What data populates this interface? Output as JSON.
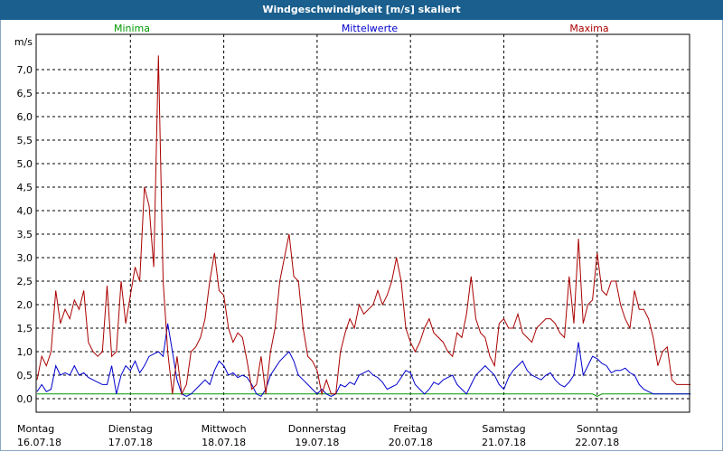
{
  "window": {
    "title": "Windgeschwindigkeit [m/s] skaliert"
  },
  "chart_data": {
    "type": "line",
    "title": "Windgeschwindigkeit [m/s] skaliert",
    "ylabel": "m/s",
    "ylim": [
      0,
      7.5
    ],
    "y_ticks": [
      "0,0",
      "0,5",
      "1,0",
      "1,5",
      "2,0",
      "2,5",
      "3,0",
      "3,5",
      "4,0",
      "4,5",
      "5,0",
      "5,5",
      "6,0",
      "6,5",
      "7,0"
    ],
    "x_range": [
      0,
      7
    ],
    "x_ticks": [
      {
        "day": "Montag",
        "date": "16.07.18"
      },
      {
        "day": "Dienstag",
        "date": "17.07.18"
      },
      {
        "day": "Mittwoch",
        "date": "18.07.18"
      },
      {
        "day": "Donnerstag",
        "date": "19.07.18"
      },
      {
        "day": "Freitag",
        "date": "20.07.18"
      },
      {
        "day": "Samstag",
        "date": "21.07.18"
      },
      {
        "day": "Sonntag",
        "date": "22.07.18"
      }
    ],
    "grid": true,
    "legend_position": "top",
    "series": [
      {
        "name": "Minima",
        "color": "#009900",
        "x": [
          0,
          5.95,
          6.0,
          6.05,
          7.0
        ],
        "y": [
          0.1,
          0.1,
          0.05,
          0.1,
          0.1
        ]
      },
      {
        "name": "Mittelwerte",
        "color": "#0000cc",
        "x": [
          0,
          0.05,
          0.1,
          0.15,
          0.2,
          0.25,
          0.3,
          0.35,
          0.4,
          0.45,
          0.5,
          0.55,
          0.6,
          0.65,
          0.7,
          0.75,
          0.8,
          0.85,
          0.9,
          0.95,
          1.0,
          1.05,
          1.1,
          1.15,
          1.2,
          1.25,
          1.3,
          1.35,
          1.4,
          1.45,
          1.5,
          1.55,
          1.6,
          1.65,
          1.7,
          1.75,
          1.8,
          1.85,
          1.9,
          1.95,
          2.0,
          2.05,
          2.1,
          2.15,
          2.2,
          2.25,
          2.3,
          2.35,
          2.4,
          2.45,
          2.5,
          2.55,
          2.6,
          2.65,
          2.7,
          2.75,
          2.8,
          2.85,
          2.9,
          2.95,
          3.0,
          3.05,
          3.1,
          3.15,
          3.2,
          3.25,
          3.3,
          3.35,
          3.4,
          3.45,
          3.5,
          3.55,
          3.6,
          3.65,
          3.7,
          3.75,
          3.8,
          3.85,
          3.9,
          3.95,
          4.0,
          4.05,
          4.1,
          4.15,
          4.2,
          4.25,
          4.3,
          4.35,
          4.4,
          4.45,
          4.5,
          4.55,
          4.6,
          4.65,
          4.7,
          4.75,
          4.8,
          4.85,
          4.9,
          4.95,
          5.0,
          5.05,
          5.1,
          5.15,
          5.2,
          5.25,
          5.3,
          5.35,
          5.4,
          5.45,
          5.5,
          5.55,
          5.6,
          5.65,
          5.7,
          5.75,
          5.8,
          5.85,
          5.9,
          5.95,
          6.0,
          6.05,
          6.1,
          6.15,
          6.2,
          6.25,
          6.3,
          6.35,
          6.4,
          6.45,
          6.5,
          6.55,
          6.6,
          6.65,
          6.7,
          6.75,
          6.8,
          6.85,
          6.9,
          6.95,
          7.0
        ],
        "y": [
          0.15,
          0.3,
          0.15,
          0.2,
          0.7,
          0.5,
          0.55,
          0.5,
          0.7,
          0.5,
          0.55,
          0.45,
          0.4,
          0.35,
          0.3,
          0.3,
          0.7,
          0.1,
          0.5,
          0.7,
          0.6,
          0.8,
          0.55,
          0.7,
          0.9,
          0.95,
          1.0,
          0.9,
          1.6,
          1.0,
          0.4,
          0.1,
          0.05,
          0.1,
          0.2,
          0.3,
          0.4,
          0.3,
          0.6,
          0.8,
          0.7,
          0.5,
          0.55,
          0.45,
          0.5,
          0.45,
          0.3,
          0.1,
          0.05,
          0.2,
          0.5,
          0.65,
          0.8,
          0.9,
          1.0,
          0.8,
          0.5,
          0.4,
          0.3,
          0.2,
          0.1,
          0.2,
          0.1,
          0.05,
          0.1,
          0.3,
          0.25,
          0.35,
          0.3,
          0.5,
          0.55,
          0.6,
          0.5,
          0.45,
          0.35,
          0.2,
          0.25,
          0.3,
          0.45,
          0.6,
          0.55,
          0.3,
          0.2,
          0.1,
          0.2,
          0.35,
          0.3,
          0.4,
          0.45,
          0.5,
          0.3,
          0.2,
          0.1,
          0.3,
          0.5,
          0.6,
          0.7,
          0.6,
          0.5,
          0.3,
          0.2,
          0.45,
          0.6,
          0.7,
          0.8,
          0.6,
          0.5,
          0.45,
          0.4,
          0.5,
          0.55,
          0.4,
          0.3,
          0.25,
          0.35,
          0.5,
          1.2,
          0.5,
          0.7,
          0.9,
          0.85,
          0.75,
          0.7,
          0.55,
          0.6,
          0.6,
          0.65,
          0.55,
          0.5,
          0.3,
          0.2,
          0.15,
          0.1,
          0.1,
          0.1,
          0.1,
          0.1,
          0.1,
          0.1,
          0.1,
          0.1
        ],
        "y_note": "blue series"
      },
      {
        "name": "Maxima",
        "color": "#aa0000",
        "x": [
          0,
          0.05,
          0.1,
          0.15,
          0.2,
          0.25,
          0.3,
          0.35,
          0.4,
          0.45,
          0.5,
          0.55,
          0.6,
          0.65,
          0.7,
          0.75,
          0.8,
          0.85,
          0.9,
          0.95,
          1.0,
          1.05,
          1.1,
          1.15,
          1.2,
          1.25,
          1.3,
          1.35,
          1.4,
          1.45,
          1.5,
          1.55,
          1.6,
          1.65,
          1.7,
          1.75,
          1.8,
          1.85,
          1.9,
          1.95,
          2.0,
          2.05,
          2.1,
          2.15,
          2.2,
          2.25,
          2.3,
          2.35,
          2.4,
          2.45,
          2.5,
          2.55,
          2.6,
          2.65,
          2.7,
          2.75,
          2.8,
          2.85,
          2.9,
          2.95,
          3.0,
          3.05,
          3.1,
          3.15,
          3.2,
          3.25,
          3.3,
          3.35,
          3.4,
          3.45,
          3.5,
          3.55,
          3.6,
          3.65,
          3.7,
          3.75,
          3.8,
          3.85,
          3.9,
          3.95,
          4.0,
          4.05,
          4.1,
          4.15,
          4.2,
          4.25,
          4.3,
          4.35,
          4.4,
          4.45,
          4.5,
          4.55,
          4.6,
          4.65,
          4.7,
          4.75,
          4.8,
          4.85,
          4.9,
          4.95,
          5.0,
          5.05,
          5.1,
          5.15,
          5.2,
          5.25,
          5.3,
          5.35,
          5.4,
          5.45,
          5.5,
          5.55,
          5.6,
          5.65,
          5.7,
          5.75,
          5.8,
          5.85,
          5.9,
          5.95,
          6.0,
          6.05,
          6.1,
          6.15,
          6.2,
          6.25,
          6.3,
          6.35,
          6.4,
          6.45,
          6.5,
          6.55,
          6.6,
          6.65,
          6.7,
          6.75,
          6.8,
          6.85,
          6.9,
          6.95,
          7.0
        ],
        "y": [
          0.4,
          0.9,
          0.7,
          1.0,
          2.3,
          1.6,
          1.9,
          1.7,
          2.1,
          1.9,
          2.3,
          1.2,
          1.0,
          0.9,
          1.0,
          2.4,
          0.9,
          1.0,
          2.5,
          1.6,
          2.2,
          2.8,
          2.5,
          4.5,
          4.1,
          2.8,
          7.3,
          2.5,
          1.0,
          0.1,
          0.9,
          0.1,
          0.3,
          1.0,
          1.1,
          1.3,
          1.7,
          2.5,
          3.1,
          2.3,
          2.2,
          1.5,
          1.2,
          1.4,
          1.3,
          0.8,
          0.2,
          0.3,
          0.9,
          0.1,
          1.0,
          1.5,
          2.5,
          3.0,
          3.5,
          2.6,
          2.5,
          1.5,
          0.9,
          0.8,
          0.6,
          0.1,
          0.4,
          0.1,
          0.1,
          1.0,
          1.4,
          1.7,
          1.5,
          2.0,
          1.8,
          1.9,
          2.0,
          2.3,
          2.0,
          2.2,
          2.5,
          3.0,
          2.5,
          1.5,
          1.2,
          1.0,
          1.2,
          1.5,
          1.7,
          1.4,
          1.3,
          1.2,
          1.0,
          0.9,
          1.4,
          1.3,
          1.8,
          2.6,
          1.7,
          1.4,
          1.3,
          0.9,
          0.7,
          1.6,
          1.7,
          1.5,
          1.5,
          1.8,
          1.4,
          1.3,
          1.2,
          1.5,
          1.6,
          1.7,
          1.7,
          1.6,
          1.4,
          1.3,
          2.6,
          1.6,
          3.4,
          1.6,
          2.0,
          2.1,
          3.1,
          2.3,
          2.2,
          2.5,
          2.5,
          2.0,
          1.7,
          1.5,
          2.3,
          1.9,
          1.9,
          1.7,
          1.3,
          0.7,
          1.0,
          1.1,
          0.4,
          0.3,
          0.3,
          0.3,
          0.3
        ]
      }
    ]
  }
}
